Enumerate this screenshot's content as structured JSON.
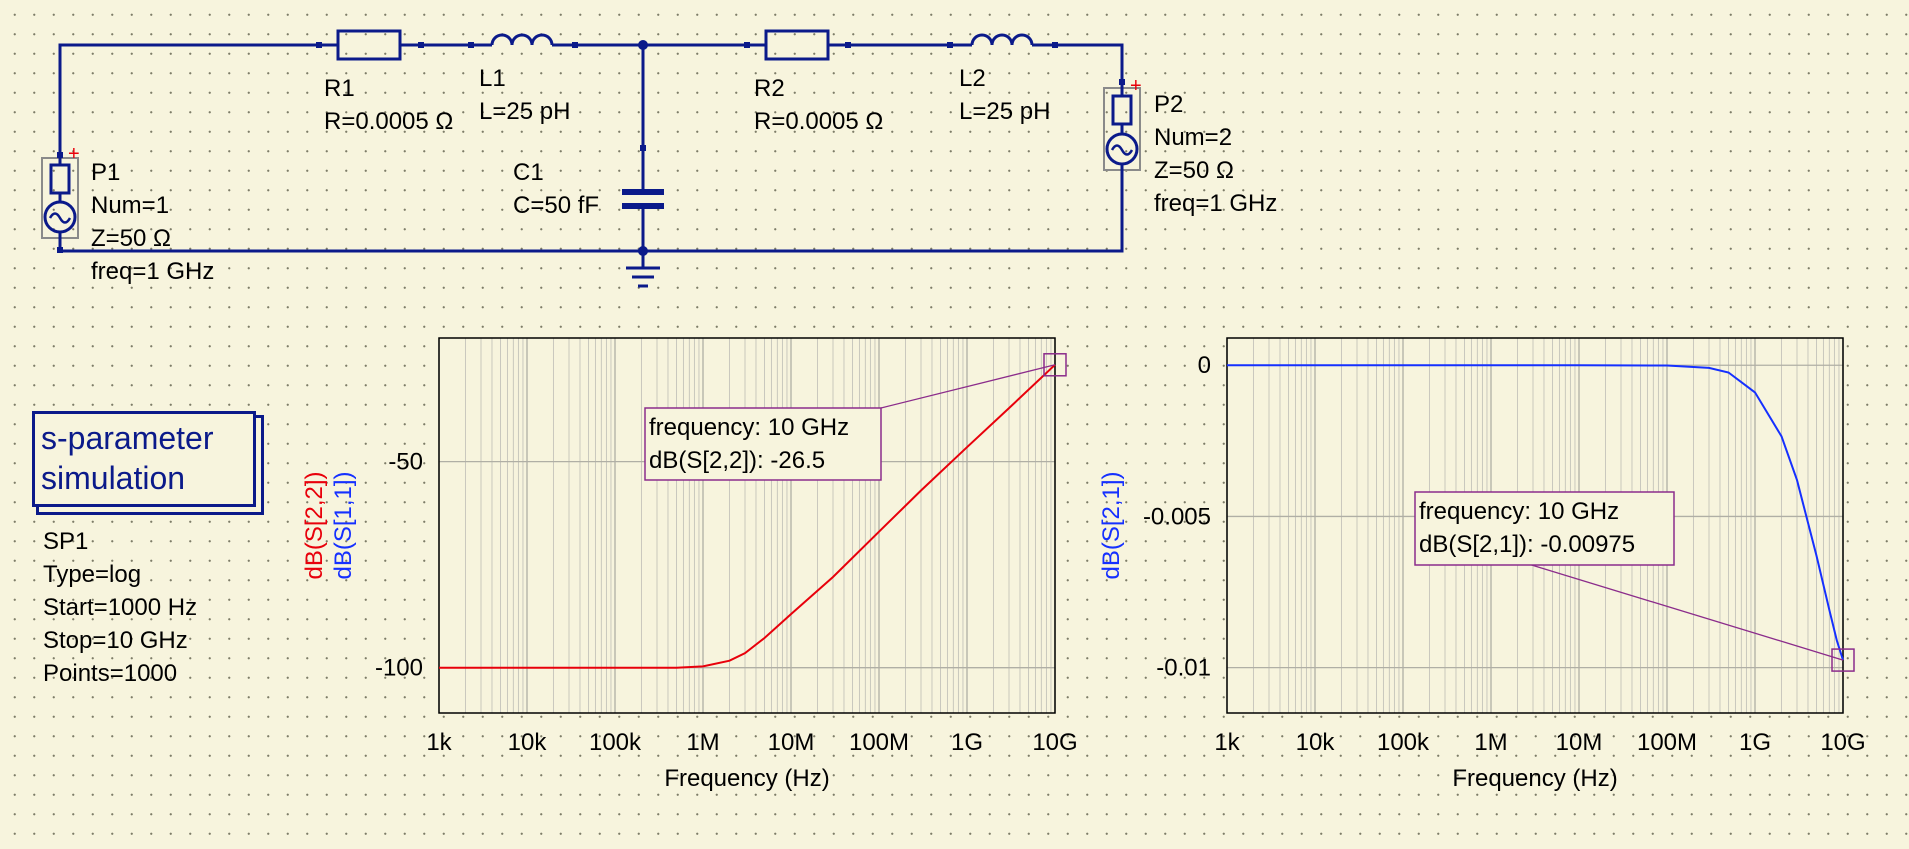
{
  "schematic": {
    "components": {
      "R1": {
        "name": "R1",
        "value": "R=0.0005 Ω"
      },
      "L1": {
        "name": "L1",
        "value": "L=25 pH"
      },
      "R2": {
        "name": "R2",
        "value": "R=0.0005 Ω"
      },
      "L2": {
        "name": "L2",
        "value": "L=25 pH"
      },
      "C1": {
        "name": "C1",
        "value": "C=50 fF"
      },
      "P1": {
        "name": "P1",
        "num": "Num=1",
        "z": "Z=50 Ω",
        "freq": "freq=1 GHz"
      },
      "P2": {
        "name": "P2",
        "num": "Num=2",
        "z": "Z=50 Ω",
        "freq": "freq=1 GHz"
      }
    },
    "port_marker": "+"
  },
  "simulation": {
    "title_line1": "s-parameter",
    "title_line2": "simulation",
    "name": "SP1",
    "type": "Type=log",
    "start": "Start=1000 Hz",
    "stop": "Stop=10 GHz",
    "points": "Points=1000"
  },
  "colors": {
    "wire": "#0b1a8a",
    "s22": "#e8000b",
    "s11": "#1530ff",
    "s21": "#1530ff",
    "marker": "#8b2c8b"
  },
  "chart_data": [
    {
      "type": "line",
      "xlabel": "Frequency (Hz)",
      "x_scale": "log",
      "xlim": [
        1000,
        10000000000
      ],
      "x_ticks": [
        "1k",
        "10k",
        "100k",
        "1M",
        "10M",
        "100M",
        "1G",
        "10G"
      ],
      "ylim": [
        -111,
        -20
      ],
      "y_ticks": [
        {
          "value": -50,
          "label": "-50"
        },
        {
          "value": -100,
          "label": "-100"
        }
      ],
      "ylabels": [
        {
          "text": "dB(S[2,2])",
          "color": "#e8000b"
        },
        {
          "text": "dB(S[1,1])",
          "color": "#1530ff"
        }
      ],
      "grid": true,
      "series": [
        {
          "name": "dB(S[2,2])",
          "color": "#e8000b",
          "x": [
            1000,
            10000,
            100000,
            300000,
            500000,
            1000000,
            2000000,
            3000000,
            5000000,
            10000000,
            30000000,
            100000000,
            300000000,
            1000000000,
            3000000000,
            10000000000
          ],
          "y": [
            -100,
            -100,
            -100,
            -100,
            -100,
            -99.7,
            -98.3,
            -96.5,
            -92.8,
            -87.0,
            -78.0,
            -67.0,
            -57.0,
            -46.5,
            -37.0,
            -26.5
          ]
        }
      ],
      "marker": {
        "x": 10000000000,
        "y": -26.5,
        "line1": "frequency: 10 GHz",
        "line2": "dB(S[2,2]): -26.5"
      }
    },
    {
      "type": "line",
      "xlabel": "Frequency (Hz)",
      "x_scale": "log",
      "xlim": [
        1000,
        10000000000
      ],
      "x_ticks": [
        "1k",
        "10k",
        "100k",
        "1M",
        "10M",
        "100M",
        "1G",
        "10G"
      ],
      "ylim": [
        -0.0115,
        0.0009
      ],
      "y_ticks": [
        {
          "value": 0,
          "label": "0"
        },
        {
          "value": -0.005,
          "label": "-0.005"
        },
        {
          "value": -0.01,
          "label": "-0.01"
        }
      ],
      "ylabels": [
        {
          "text": "dB(S[2,1])",
          "color": "#1530ff"
        }
      ],
      "grid": true,
      "series": [
        {
          "name": "dB(S[2,1])",
          "color": "#1530ff",
          "x": [
            1000,
            10000,
            100000,
            1000000,
            10000000,
            100000000,
            300000000,
            500000000,
            1000000000,
            2000000000,
            3000000000,
            5000000000,
            7000000000,
            8500000000,
            10000000000
          ],
          "y": [
            0,
            0,
            0,
            0,
            0,
            -1e-05,
            -9e-05,
            -0.00024,
            -0.0009,
            -0.00235,
            -0.0038,
            -0.0063,
            -0.0081,
            -0.0091,
            -0.00975
          ]
        }
      ],
      "marker": {
        "x": 10000000000,
        "y": -0.00975,
        "line1": "frequency: 10 GHz",
        "line2": "dB(S[2,1]): -0.00975"
      }
    }
  ]
}
